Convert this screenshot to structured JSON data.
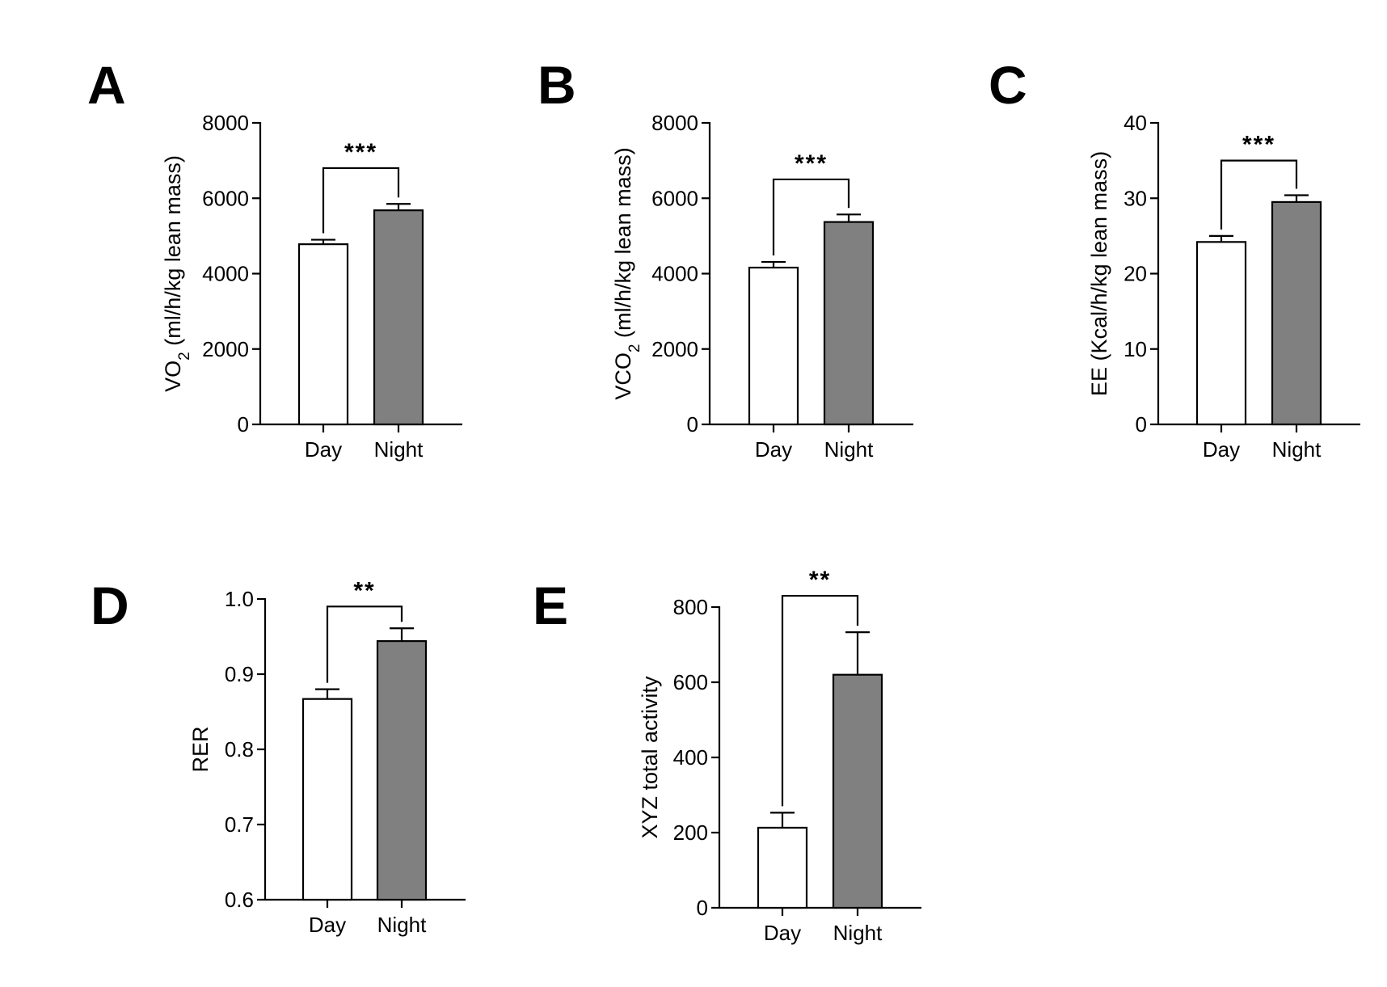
{
  "colors": {
    "day_bar": "#ffffff",
    "night_bar": "#808080",
    "stroke": "#000000"
  },
  "chart_data": [
    {
      "panel": "A",
      "type": "bar",
      "title": "",
      "xlabel": "",
      "ylabel": "VO",
      "ylabel_sub": "2",
      "ylabel_rest": " (ml/h/kg lean mass)",
      "categories": [
        "Day",
        "Night"
      ],
      "values": [
        4780,
        5680
      ],
      "errors": [
        120,
        170
      ],
      "ylim": [
        0,
        8000
      ],
      "yticks": [
        0,
        2000,
        4000,
        6000,
        8000
      ],
      "tick_labels": [
        "0",
        "2000",
        "4000",
        "6000",
        "8000"
      ],
      "significance": "***",
      "bracket_top": 6800
    },
    {
      "panel": "B",
      "type": "bar",
      "title": "",
      "xlabel": "",
      "ylabel": "VCO",
      "ylabel_sub": "2",
      "ylabel_rest": " (ml/h/kg lean mass)",
      "categories": [
        "Day",
        "Night"
      ],
      "values": [
        4160,
        5370
      ],
      "errors": [
        150,
        200
      ],
      "ylim": [
        0,
        8000
      ],
      "yticks": [
        0,
        2000,
        4000,
        6000,
        8000
      ],
      "tick_labels": [
        "0",
        "2000",
        "4000",
        "6000",
        "8000"
      ],
      "significance": "***",
      "bracket_top": 6500
    },
    {
      "panel": "C",
      "type": "bar",
      "title": "",
      "xlabel": "",
      "ylabel": "EE (Kcal/h/kg lean mass)",
      "ylabel_sub": "",
      "ylabel_rest": "",
      "categories": [
        "Day",
        "Night"
      ],
      "values": [
        24.2,
        29.5
      ],
      "errors": [
        0.8,
        0.9
      ],
      "ylim": [
        0,
        40
      ],
      "yticks": [
        0,
        10,
        20,
        30,
        40
      ],
      "tick_labels": [
        "0",
        "10",
        "20",
        "30",
        "40"
      ],
      "significance": "***",
      "bracket_top": 35
    },
    {
      "panel": "D",
      "type": "bar",
      "title": "",
      "xlabel": "",
      "ylabel": "RER",
      "ylabel_sub": "",
      "ylabel_rest": "",
      "categories": [
        "Day",
        "Night"
      ],
      "values": [
        0.867,
        0.944
      ],
      "errors": [
        0.013,
        0.017
      ],
      "ylim": [
        0.6,
        1.0
      ],
      "yticks": [
        0.6,
        0.7,
        0.8,
        0.9,
        1.0
      ],
      "tick_labels": [
        "0.6",
        "0.7",
        "0.8",
        "0.9",
        "1.0"
      ],
      "significance": "**",
      "bracket_top": 0.99
    },
    {
      "panel": "E",
      "type": "bar",
      "title": "",
      "xlabel": "",
      "ylabel": "XYZ total activity",
      "ylabel_sub": "",
      "ylabel_rest": "",
      "categories": [
        "Day",
        "Night"
      ],
      "values": [
        213,
        620
      ],
      "errors": [
        40,
        113
      ],
      "ylim": [
        0,
        800
      ],
      "yticks": [
        0,
        200,
        400,
        600,
        800
      ],
      "tick_labels": [
        "0",
        "200",
        "400",
        "600",
        "800"
      ],
      "significance": "**",
      "bracket_top": 830
    }
  ]
}
